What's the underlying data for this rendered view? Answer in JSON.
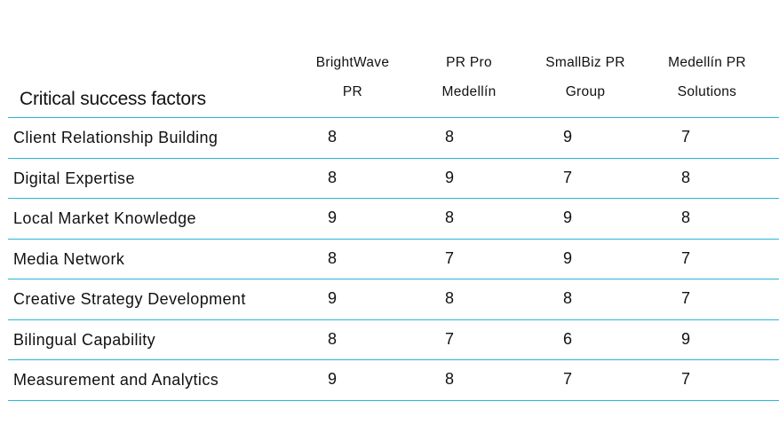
{
  "table": {
    "title": "Critical success factors",
    "columns": [
      {
        "line1": "BrightWave",
        "line2": "PR"
      },
      {
        "line1": "PR Pro",
        "line2": "Medellín"
      },
      {
        "line1": "SmallBiz PR",
        "line2": "Group"
      },
      {
        "line1": "Medellín PR",
        "line2": "Solutions"
      }
    ],
    "rows": [
      {
        "factor": "Client Relationship Building",
        "scores": [
          "8",
          "8",
          "9",
          "7"
        ]
      },
      {
        "factor": "Digital Expertise",
        "scores": [
          "8",
          "9",
          "7",
          "8"
        ]
      },
      {
        "factor": "Local Market Knowledge",
        "scores": [
          "9",
          "8",
          "9",
          "8"
        ]
      },
      {
        "factor": "Media Network",
        "scores": [
          "8",
          "7",
          "9",
          "7"
        ]
      },
      {
        "factor": "Creative Strategy Development",
        "scores": [
          "9",
          "8",
          "8",
          "7"
        ]
      },
      {
        "factor": "Bilingual Capability",
        "scores": [
          "8",
          "7",
          "6",
          "9"
        ]
      },
      {
        "factor": "Measurement and Analytics",
        "scores": [
          "9",
          "8",
          "7",
          "7"
        ]
      }
    ],
    "colors": {
      "rule": "#29b6d9",
      "text": "#111111"
    }
  }
}
